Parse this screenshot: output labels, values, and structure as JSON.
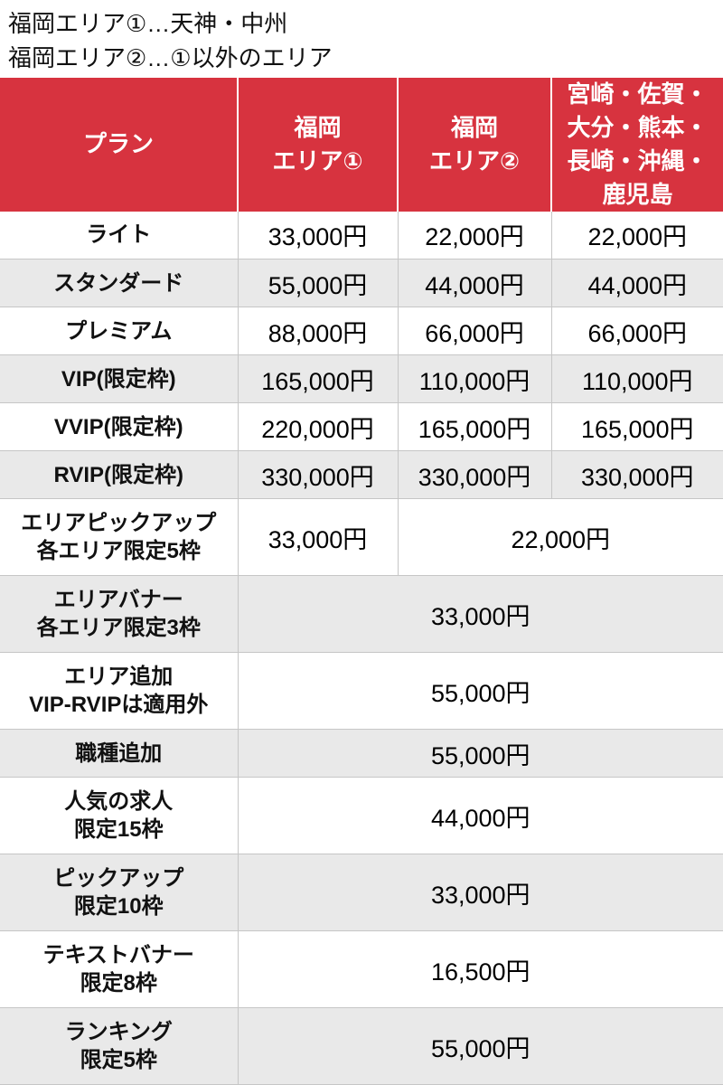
{
  "page": {
    "notes": [
      "福岡エリア①…天神・中州",
      "福岡エリア②…①以外のエリア"
    ]
  },
  "colors": {
    "header_bg": "#d7333f",
    "header_text": "#ffffff",
    "alt_row_bg": "#e9e9e9",
    "grid_line": "#c6c6c6",
    "body_text": "#111111"
  },
  "table": {
    "headers": {
      "plan": "プラン",
      "fukuoka_area1": "福岡\nエリア①",
      "fukuoka_area2": "福岡\nエリア②",
      "other_prefectures": "宮崎・佐賀・大分・熊本・長崎・沖縄・鹿児島"
    },
    "rows": [
      {
        "plan": "ライト",
        "prices": [
          "33,000円",
          "22,000円",
          "22,000円"
        ]
      },
      {
        "plan": "スタンダード",
        "prices": [
          "55,000円",
          "44,000円",
          "44,000円"
        ]
      },
      {
        "plan": "プレミアム",
        "prices": [
          "88,000円",
          "66,000円",
          "66,000円"
        ]
      },
      {
        "plan": "VIP(限定枠)",
        "prices": [
          "165,000円",
          "110,000円",
          "110,000円"
        ]
      },
      {
        "plan": "VVIP(限定枠)",
        "prices": [
          "220,000円",
          "165,000円",
          "165,000円"
        ]
      },
      {
        "plan": "RVIP(限定枠)",
        "prices": [
          "330,000円",
          "330,000円",
          "330,000円"
        ]
      },
      {
        "plan": "エリアピックアップ\n各エリア限定5枠",
        "prices": [
          "33,000円",
          "22,000円"
        ]
      },
      {
        "plan": "エリアバナー\n各エリア限定3枠",
        "prices": [
          "33,000円"
        ]
      },
      {
        "plan": "エリア追加\nVIP-RVIPは適用外",
        "prices": [
          "55,000円"
        ]
      },
      {
        "plan": "職種追加",
        "prices": [
          "55,000円"
        ]
      },
      {
        "plan": "人気の求人\n限定15枠",
        "prices": [
          "44,000円"
        ]
      },
      {
        "plan": "ピックアップ\n限定10枠",
        "prices": [
          "33,000円"
        ]
      },
      {
        "plan": "テキストバナー\n限定8枠",
        "prices": [
          "16,500円"
        ]
      },
      {
        "plan": "ランキング\n限定5枠",
        "prices": [
          "55,000円"
        ]
      }
    ]
  }
}
